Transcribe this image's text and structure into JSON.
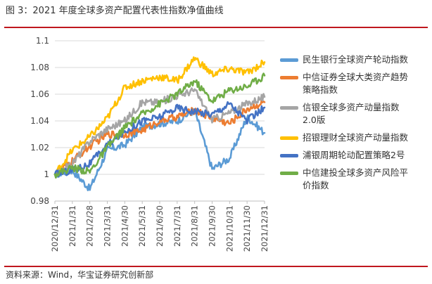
{
  "figure": {
    "title": "图 3：2021 年度全球多资产配置代表性指数净值曲线",
    "source": "资料来源：Wind，华宝证券研究创新部"
  },
  "chart_data": {
    "type": "line",
    "title": "",
    "xlabel": "",
    "ylabel": "",
    "ylim": [
      0.98,
      1.1
    ],
    "yticks": [
      "0.98",
      "1",
      "1.02",
      "1.04",
      "1.06",
      "1.08",
      "1.1"
    ],
    "x": [
      "2020/12/31",
      "2021/1/31",
      "2021/2/28",
      "2021/3/31",
      "2021/4/30",
      "2021/5/31",
      "2021/6/30",
      "2021/7/31",
      "2021/8/31",
      "2021/9/30",
      "2021/10/31",
      "2021/11/30",
      "2021/12/31"
    ],
    "grid": "horizontal",
    "legend_position": "right",
    "series": [
      {
        "name": "民生银行全球资产轮动指数",
        "color": "#5b9bd5",
        "values": [
          1.0,
          1.003,
          0.989,
          1.018,
          1.022,
          1.035,
          1.038,
          1.04,
          1.048,
          1.004,
          1.012,
          1.043,
          1.031
        ]
      },
      {
        "name": "中信证券全球大类资产趋势策略指数",
        "color": "#ed7d31",
        "values": [
          1.0,
          1.01,
          1.021,
          1.03,
          1.03,
          1.033,
          1.04,
          1.043,
          1.048,
          1.042,
          1.038,
          1.049,
          1.054
        ]
      },
      {
        "name": "信银全球多资产动量指数2.0版",
        "color": "#a5a5a5",
        "values": [
          1.0,
          1.008,
          1.025,
          1.034,
          1.04,
          1.054,
          1.054,
          1.059,
          1.063,
          1.041,
          1.046,
          1.053,
          1.058
        ]
      },
      {
        "name": "招银理财全球资产动量指数",
        "color": "#ffc000",
        "values": [
          1.0,
          1.018,
          1.028,
          1.042,
          1.065,
          1.07,
          1.073,
          1.07,
          1.087,
          1.075,
          1.079,
          1.076,
          1.084
        ]
      },
      {
        "name": "浦银周期轮动配置策略2号",
        "color": "#4472c4",
        "values": [
          1.0,
          1.003,
          1.008,
          1.022,
          1.032,
          1.04,
          1.043,
          1.05,
          1.047,
          1.045,
          1.053,
          1.04,
          1.05
        ]
      },
      {
        "name": "中信建投全球多资产风险平价指数",
        "color": "#70ad47",
        "values": [
          1.0,
          1.005,
          1.002,
          1.02,
          1.035,
          1.045,
          1.053,
          1.06,
          1.07,
          1.055,
          1.063,
          1.066,
          1.074
        ]
      }
    ]
  }
}
